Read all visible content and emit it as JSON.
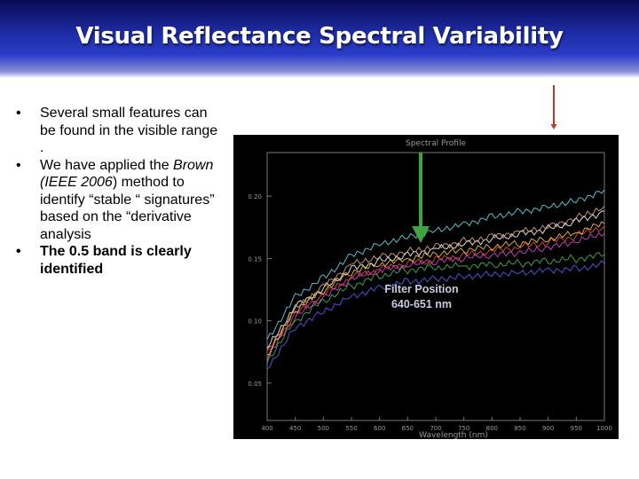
{
  "slide": {
    "title": "Visual Reflectance Spectral Variability",
    "bullets": [
      {
        "text": "Several small features can be found in the visible range .",
        "bold": false
      },
      {
        "text_before": "We have applied the ",
        "text_italic": "Brown (IEEE 2006",
        "text_after": ") method to identify “stable “ signatures” based on the “derivative analysis",
        "bold": false
      },
      {
        "text": "The 0.5 band is clearly identified",
        "bold": true
      }
    ]
  },
  "annotation": {
    "line1": "Filter Position",
    "line2": "640-651 nm",
    "arrow_color": "#3fa33f",
    "marker_color": "#c0392b"
  },
  "chart_data": {
    "type": "line",
    "title": "Spectral Profile",
    "xlabel": "Wavelength (nm)",
    "ylabel": "",
    "x_ticks": [
      400,
      450,
      500,
      550,
      600,
      650,
      700,
      750,
      800,
      850,
      900,
      950,
      1000
    ],
    "y_ticks": [
      "0.20",
      "0.15",
      "0.10",
      "0.05"
    ],
    "xlim": [
      400,
      1000
    ],
    "ylim": [
      0.02,
      0.235
    ],
    "x": [
      400,
      450,
      500,
      550,
      600,
      650,
      700,
      750,
      800,
      850,
      900,
      950,
      1000
    ],
    "series": [
      {
        "color": "#5fd3e0",
        "values": [
          0.085,
          0.12,
          0.135,
          0.153,
          0.162,
          0.168,
          0.173,
          0.178,
          0.184,
          0.188,
          0.192,
          0.197,
          0.205
        ]
      },
      {
        "color": "#f2f2f2",
        "values": [
          0.078,
          0.112,
          0.126,
          0.142,
          0.148,
          0.153,
          0.158,
          0.162,
          0.166,
          0.17,
          0.174,
          0.18,
          0.188
        ]
      },
      {
        "color": "#e04848",
        "values": [
          0.073,
          0.105,
          0.121,
          0.135,
          0.141,
          0.146,
          0.149,
          0.152,
          0.156,
          0.159,
          0.163,
          0.168,
          0.176
        ]
      },
      {
        "color": "#d040c8",
        "values": [
          0.07,
          0.103,
          0.118,
          0.133,
          0.14,
          0.144,
          0.147,
          0.15,
          0.152,
          0.154,
          0.158,
          0.163,
          0.17
        ]
      },
      {
        "color": "#f0c030",
        "values": [
          0.072,
          0.108,
          0.124,
          0.139,
          0.145,
          0.149,
          0.153,
          0.156,
          0.159,
          0.162,
          0.165,
          0.17,
          0.178
        ]
      },
      {
        "color": "#40b050",
        "values": [
          0.068,
          0.1,
          0.116,
          0.128,
          0.136,
          0.141,
          0.143,
          0.144,
          0.145,
          0.146,
          0.148,
          0.15,
          0.153
        ]
      },
      {
        "color": "#5a5ae8",
        "values": [
          0.062,
          0.095,
          0.108,
          0.12,
          0.127,
          0.132,
          0.134,
          0.136,
          0.138,
          0.139,
          0.141,
          0.142,
          0.146
        ]
      },
      {
        "color": "#d8a080",
        "values": [
          0.075,
          0.11,
          0.128,
          0.146,
          0.152,
          0.156,
          0.16,
          0.164,
          0.168,
          0.172,
          0.176,
          0.183,
          0.192
        ]
      }
    ]
  }
}
